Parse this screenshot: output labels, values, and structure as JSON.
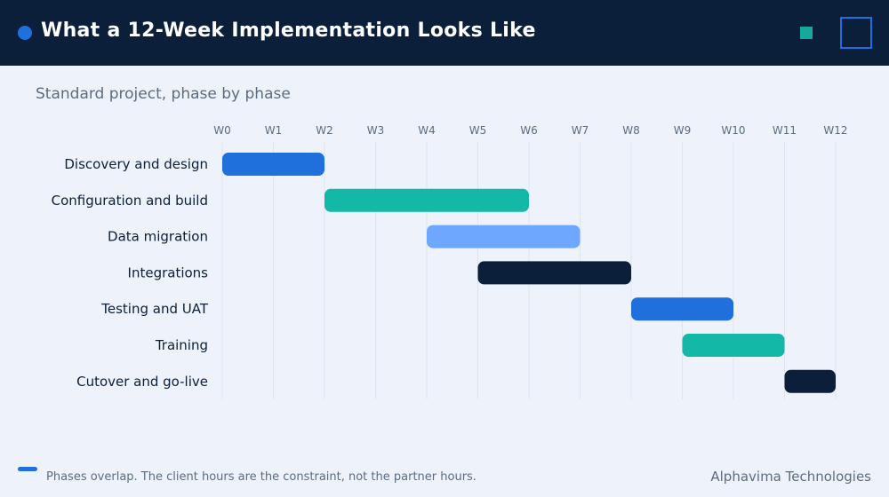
{
  "header": {
    "title": "What a 12-Week Implementation Looks Like"
  },
  "subtitle": "Standard project, phase by phase",
  "footer": {
    "note": "Phases overlap. The client hours are the constraint, not the partner hours.",
    "brand": "Alphavima Technologies"
  },
  "colors": {
    "navy": "#0b1f3a",
    "blue": "#1f6fdc",
    "teal": "#14b8a6",
    "light_blue": "#6ea8fe",
    "background": "#eef3fb"
  },
  "chart_data": {
    "type": "gantt",
    "x_ticks": [
      "W0",
      "W1",
      "W2",
      "W3",
      "W4",
      "W5",
      "W6",
      "W7",
      "W8",
      "W9",
      "W10",
      "W11",
      "W12"
    ],
    "xlim": [
      0,
      12
    ],
    "grid": true,
    "tasks": [
      {
        "label": "Discovery and design",
        "start": 0,
        "end": 2,
        "color": "#1f6fdc"
      },
      {
        "label": "Configuration and build",
        "start": 2,
        "end": 6,
        "color": "#14b8a6"
      },
      {
        "label": "Data migration",
        "start": 4,
        "end": 7,
        "color": "#6ea8fe"
      },
      {
        "label": "Integrations",
        "start": 5,
        "end": 8,
        "color": "#0b1f3a"
      },
      {
        "label": "Testing and UAT",
        "start": 8,
        "end": 10,
        "color": "#1f6fdc"
      },
      {
        "label": "Training",
        "start": 9,
        "end": 11,
        "color": "#14b8a6"
      },
      {
        "label": "Cutover and go-live",
        "start": 11,
        "end": 12,
        "color": "#0b1f3a"
      }
    ]
  }
}
